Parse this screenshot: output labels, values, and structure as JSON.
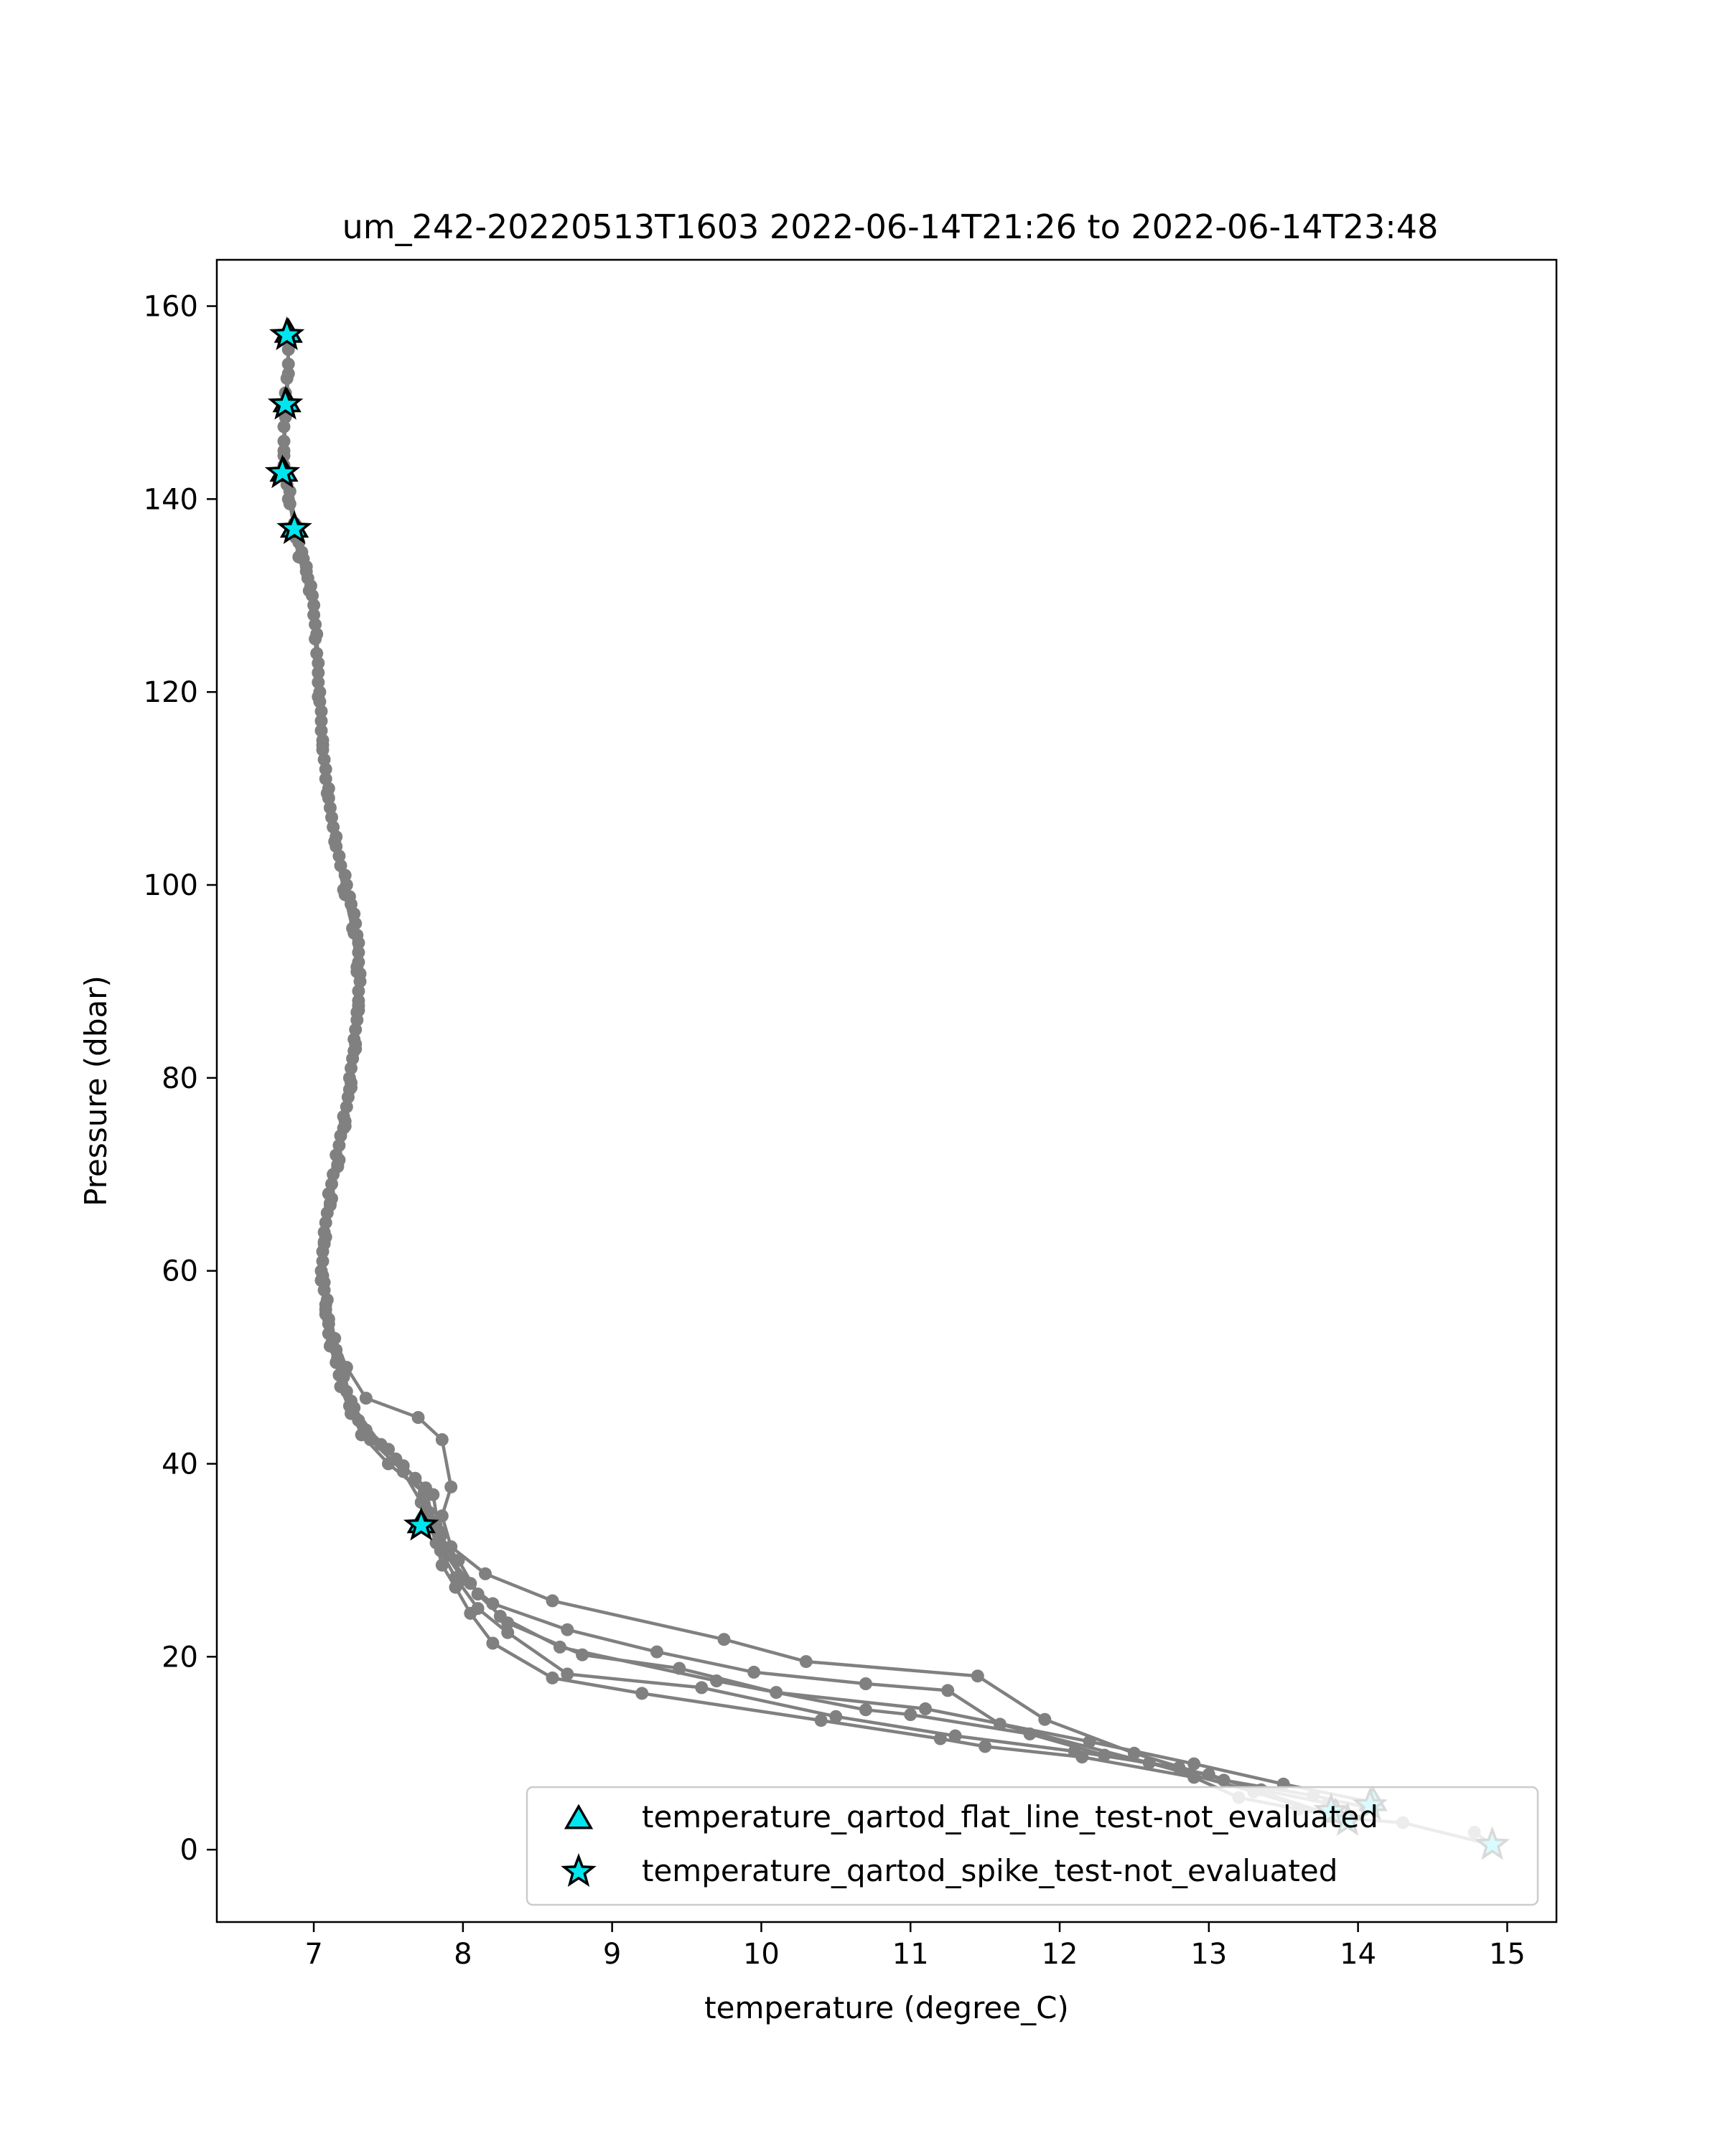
{
  "chart_data": {
    "type": "scatter",
    "title": "um_242-20220513T1603 2022-06-14T21:26 to 2022-06-14T23:48",
    "xlabel": "temperature (degree_C)",
    "ylabel": "Pressure (dbar)",
    "xlim": [
      6.35,
      15.33
    ],
    "ylim": [
      164.8,
      -7.5
    ],
    "y_inverted": true,
    "grid": false,
    "legend_placement": "lower-right",
    "xticks": [
      7,
      8,
      9,
      10,
      11,
      12,
      13,
      14,
      15
    ],
    "yticks": [
      0,
      20,
      40,
      60,
      80,
      100,
      120,
      140,
      160
    ],
    "colors": {
      "profile_line": "#808080",
      "marker_fill": "#00e5ee",
      "marker_edge": "#000000"
    },
    "profiles": [
      {
        "points": [
          [
            14.78,
            1.8
          ],
          [
            14.9,
            0.5
          ],
          [
            14.3,
            2.8
          ],
          [
            13.95,
            3.2
          ],
          [
            13.6,
            4.2
          ],
          [
            13.2,
            5.4
          ],
          [
            12.9,
            7.5
          ],
          [
            12.15,
            9.6
          ],
          [
            11.5,
            10.7
          ],
          [
            11.2,
            11.5
          ],
          [
            10.4,
            13.4
          ],
          [
            9.2,
            16.2
          ],
          [
            8.6,
            17.8
          ],
          [
            8.2,
            21.4
          ],
          [
            8.05,
            24.5
          ],
          [
            7.95,
            27.2
          ],
          [
            7.86,
            29.5
          ],
          [
            7.82,
            31.8
          ],
          [
            7.78,
            33.5
          ],
          [
            7.72,
            36.0
          ],
          [
            7.6,
            39.2
          ],
          [
            7.38,
            42.5
          ],
          [
            7.25,
            45.2
          ],
          [
            7.18,
            48.0
          ],
          [
            7.15,
            50.5
          ],
          [
            7.1,
            53.5
          ],
          [
            7.08,
            56.5
          ],
          [
            7.05,
            60.0
          ],
          [
            7.07,
            64.0
          ],
          [
            7.1,
            68.0
          ],
          [
            7.15,
            72.0
          ],
          [
            7.2,
            76.0
          ],
          [
            7.24,
            80.0
          ],
          [
            7.27,
            84.0
          ],
          [
            7.3,
            88.0
          ],
          [
            7.3,
            92.0
          ],
          [
            7.28,
            96.0
          ],
          [
            7.22,
            100.0
          ],
          [
            7.15,
            105.0
          ],
          [
            7.1,
            110.0
          ],
          [
            7.06,
            115.0
          ],
          [
            7.04,
            120.0
          ],
          [
            7.02,
            126.0
          ],
          [
            6.98,
            131.0
          ],
          [
            6.92,
            134.5
          ],
          [
            6.88,
            137.0
          ],
          [
            6.83,
            140.0
          ],
          [
            6.8,
            142.7
          ],
          [
            6.8,
            146.0
          ],
          [
            6.82,
            150.0
          ],
          [
            6.83,
            154.0
          ],
          [
            6.82,
            157.2
          ]
        ]
      },
      {
        "points": [
          [
            13.8,
            4.8
          ],
          [
            13.35,
            6.2
          ],
          [
            12.8,
            8.5
          ],
          [
            12.1,
            10.2
          ],
          [
            11.3,
            11.8
          ],
          [
            10.5,
            13.8
          ],
          [
            9.6,
            16.8
          ],
          [
            8.7,
            18.2
          ],
          [
            8.3,
            22.5
          ],
          [
            8.1,
            25.0
          ],
          [
            7.95,
            28.2
          ],
          [
            7.85,
            31.0
          ],
          [
            7.8,
            34.0
          ],
          [
            7.75,
            37.5
          ],
          [
            7.55,
            40.5
          ],
          [
            7.35,
            43.5
          ],
          [
            7.25,
            46.5
          ],
          [
            7.2,
            49.5
          ],
          [
            7.12,
            52.5
          ],
          [
            7.08,
            56.0
          ],
          [
            7.06,
            59.5
          ],
          [
            7.08,
            63.5
          ],
          [
            7.12,
            67.5
          ],
          [
            7.17,
            71.5
          ],
          [
            7.21,
            75.5
          ],
          [
            7.25,
            79.5
          ],
          [
            7.28,
            83.5
          ],
          [
            7.3,
            87.5
          ],
          [
            7.29,
            91.5
          ],
          [
            7.26,
            95.5
          ],
          [
            7.2,
            99.5
          ],
          [
            7.14,
            104.5
          ],
          [
            7.09,
            109.5
          ],
          [
            7.06,
            114.5
          ],
          [
            7.03,
            119.5
          ],
          [
            7.01,
            125.5
          ],
          [
            6.97,
            130.5
          ],
          [
            6.9,
            134.0
          ],
          [
            6.86,
            136.8
          ]
        ]
      },
      {
        "points": [
          [
            14.1,
            4.9
          ],
          [
            13.5,
            6.8
          ],
          [
            12.9,
            8.9
          ],
          [
            12.2,
            11.2
          ],
          [
            11.1,
            14.6
          ],
          [
            10.1,
            16.3
          ],
          [
            9.45,
            18.8
          ],
          [
            8.8,
            20.2
          ],
          [
            8.3,
            23.5
          ],
          [
            8.1,
            26.5
          ],
          [
            7.97,
            30.0
          ],
          [
            7.85,
            32.5
          ],
          [
            7.77,
            35.0
          ],
          [
            7.68,
            38.5
          ],
          [
            7.5,
            41.5
          ],
          [
            7.3,
            44.5
          ],
          [
            7.22,
            47.5
          ],
          [
            7.16,
            51.0
          ],
          [
            7.1,
            54.5
          ],
          [
            7.07,
            58.0
          ],
          [
            7.06,
            62.0
          ],
          [
            7.09,
            66.0
          ],
          [
            7.13,
            70.0
          ],
          [
            7.18,
            74.0
          ],
          [
            7.23,
            78.0
          ],
          [
            7.26,
            82.0
          ],
          [
            7.29,
            86.0
          ],
          [
            7.31,
            90.0
          ],
          [
            7.3,
            94.0
          ],
          [
            7.25,
            98.0
          ],
          [
            7.18,
            102.0
          ],
          [
            7.12,
            107.0
          ],
          [
            7.08,
            112.0
          ],
          [
            7.05,
            117.0
          ],
          [
            7.03,
            122.0
          ],
          [
            7.0,
            128.0
          ],
          [
            6.95,
            132.5
          ],
          [
            6.88,
            136.0
          ],
          [
            6.84,
            139.5
          ],
          [
            6.8,
            143.5
          ],
          [
            6.8,
            147.5
          ],
          [
            6.81,
            151.0
          ]
        ]
      },
      {
        "points": [
          [
            13.82,
            3.6
          ],
          [
            13.0,
            7.8
          ],
          [
            12.3,
            9.8
          ],
          [
            11.8,
            12.0
          ],
          [
            11.0,
            14.0
          ],
          [
            10.7,
            14.5
          ],
          [
            9.7,
            17.5
          ],
          [
            8.65,
            21.0
          ],
          [
            8.25,
            24.2
          ],
          [
            8.05,
            27.6
          ],
          [
            7.9,
            30.5
          ],
          [
            7.84,
            33.0
          ],
          [
            7.8,
            36.8
          ],
          [
            7.6,
            39.8
          ],
          [
            7.45,
            42.0
          ],
          [
            7.27,
            45.8
          ],
          [
            7.2,
            49.0
          ],
          [
            7.15,
            51.8
          ],
          [
            7.1,
            55.0
          ],
          [
            7.07,
            58.8
          ],
          [
            7.07,
            62.8
          ],
          [
            7.11,
            66.8
          ],
          [
            7.16,
            70.8
          ],
          [
            7.2,
            74.8
          ],
          [
            7.24,
            78.8
          ],
          [
            7.27,
            82.8
          ],
          [
            7.29,
            86.8
          ],
          [
            7.31,
            90.8
          ],
          [
            7.29,
            94.8
          ],
          [
            7.24,
            98.8
          ],
          [
            7.17,
            103.0
          ],
          [
            7.11,
            108.0
          ],
          [
            7.07,
            113.0
          ],
          [
            7.05,
            118.0
          ],
          [
            7.03,
            123.0
          ],
          [
            7.0,
            129.0
          ],
          [
            6.95,
            133.0
          ],
          [
            6.87,
            137.5
          ],
          [
            6.82,
            141.5
          ],
          [
            6.8,
            145.0
          ],
          [
            6.81,
            149.0
          ],
          [
            6.83,
            153.0
          ],
          [
            6.83,
            156.8
          ]
        ]
      },
      {
        "points": [
          [
            14.05,
            4.4
          ],
          [
            13.7,
            5.6
          ],
          [
            13.1,
            7.2
          ],
          [
            12.5,
            10.0
          ],
          [
            11.9,
            13.5
          ],
          [
            11.45,
            18.0
          ],
          [
            10.3,
            19.5
          ],
          [
            9.75,
            21.8
          ],
          [
            8.6,
            25.8
          ],
          [
            8.15,
            28.6
          ],
          [
            7.92,
            31.4
          ],
          [
            7.86,
            34.6
          ],
          [
            7.92,
            37.6
          ],
          [
            7.86,
            42.5
          ],
          [
            7.7,
            44.8
          ],
          [
            7.35,
            46.8
          ],
          [
            7.22,
            50.0
          ],
          [
            7.14,
            53.0
          ],
          [
            7.09,
            57.0
          ],
          [
            7.06,
            61.0
          ],
          [
            7.08,
            65.0
          ],
          [
            7.12,
            69.0
          ],
          [
            7.17,
            73.0
          ],
          [
            7.22,
            77.0
          ],
          [
            7.25,
            81.0
          ],
          [
            7.28,
            85.0
          ],
          [
            7.3,
            89.0
          ],
          [
            7.3,
            93.0
          ],
          [
            7.27,
            97.0
          ],
          [
            7.21,
            101.0
          ],
          [
            7.13,
            106.0
          ],
          [
            7.08,
            111.0
          ],
          [
            7.05,
            116.0
          ],
          [
            7.03,
            121.0
          ],
          [
            7.01,
            127.0
          ],
          [
            6.96,
            131.8
          ],
          [
            6.9,
            135.5
          ]
        ]
      },
      {
        "points": [
          [
            13.92,
            3.0
          ],
          [
            13.3,
            6.0
          ],
          [
            12.6,
            9.0
          ],
          [
            11.6,
            13.0
          ],
          [
            11.25,
            16.5
          ],
          [
            10.7,
            17.2
          ],
          [
            9.95,
            18.4
          ],
          [
            9.3,
            20.5
          ],
          [
            8.7,
            22.8
          ],
          [
            8.2,
            25.5
          ],
          [
            8.0,
            28.0
          ],
          [
            7.88,
            30.8
          ],
          [
            7.82,
            33.6
          ],
          [
            7.74,
            37.0
          ],
          [
            7.5,
            40.0
          ],
          [
            7.32,
            43.0
          ],
          [
            7.24,
            46.0
          ],
          [
            7.17,
            49.2
          ],
          [
            7.11,
            52.2
          ],
          [
            7.08,
            55.5
          ],
          [
            7.05,
            59.0
          ],
          [
            7.07,
            63.0
          ],
          [
            7.11,
            67.0
          ],
          [
            7.16,
            71.0
          ],
          [
            7.21,
            75.0
          ],
          [
            7.25,
            79.0
          ],
          [
            7.28,
            83.0
          ],
          [
            7.3,
            87.0
          ],
          [
            7.29,
            91.0
          ],
          [
            7.27,
            95.0
          ],
          [
            7.21,
            99.0
          ],
          [
            7.15,
            104.0
          ],
          [
            7.1,
            109.0
          ],
          [
            7.06,
            114.0
          ],
          [
            7.04,
            119.0
          ],
          [
            7.02,
            124.0
          ],
          [
            6.99,
            130.0
          ],
          [
            6.93,
            133.8
          ],
          [
            6.88,
            137.3
          ],
          [
            6.84,
            140.8
          ],
          [
            6.8,
            144.5
          ],
          [
            6.81,
            148.5
          ],
          [
            6.82,
            152.5
          ],
          [
            6.83,
            155.5
          ]
        ]
      }
    ],
    "series": [
      {
        "name": "temperature_qartod_flat_line_test-not_evaluated",
        "marker": "triangle",
        "points": [
          [
            13.85,
            3.8
          ],
          [
            14.1,
            5.0
          ],
          [
            7.72,
            33.8
          ],
          [
            6.87,
            137.0
          ],
          [
            6.8,
            142.8
          ],
          [
            6.82,
            150.0
          ],
          [
            6.83,
            157.2
          ]
        ]
      },
      {
        "name": "temperature_qartod_spike_test-not_evaluated",
        "marker": "star",
        "points": [
          [
            14.9,
            0.5
          ],
          [
            13.93,
            3.0
          ],
          [
            13.82,
            4.0
          ],
          [
            14.08,
            4.6
          ],
          [
            7.72,
            33.6
          ],
          [
            6.87,
            136.9
          ],
          [
            6.79,
            142.7
          ],
          [
            6.81,
            149.8
          ],
          [
            6.82,
            157.0
          ]
        ]
      }
    ]
  }
}
